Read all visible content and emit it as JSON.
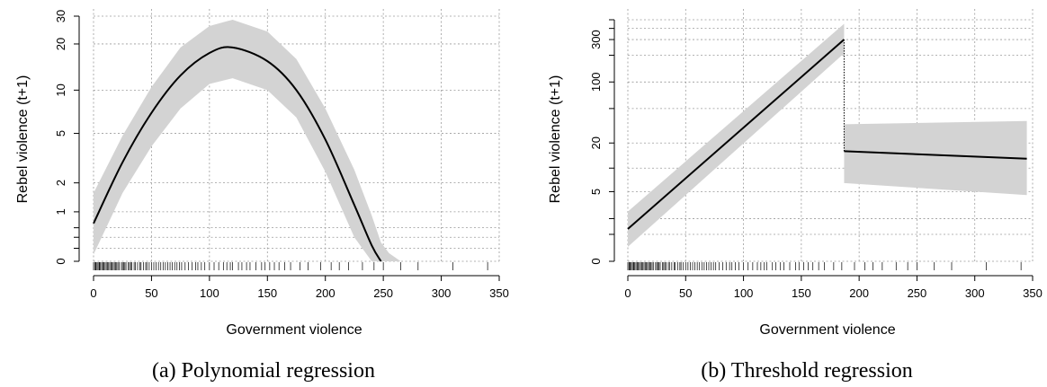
{
  "chart_data": [
    {
      "type": "line",
      "caption": "(a) Polynomial regression",
      "xlabel": "Government violence",
      "ylabel": "Rebel violence (t+1)",
      "xlim": [
        0,
        350
      ],
      "x_ticks": [
        0,
        50,
        100,
        150,
        200,
        250,
        300,
        350
      ],
      "y_scale": "log1p",
      "y_ticks": [
        0,
        1,
        2,
        5,
        10,
        20,
        30
      ],
      "y_minor_ticks": [
        0.2,
        0.4,
        0.6
      ],
      "grid": true,
      "series": [
        {
          "role": "fit",
          "x": [
            0,
            25,
            50,
            75,
            100,
            120,
            150,
            175,
            200,
            225,
            240,
            248
          ],
          "y": [
            0.7,
            3.0,
            7.0,
            12.5,
            17.5,
            19.0,
            15.5,
            10.0,
            4.5,
            1.2,
            0.25,
            0
          ],
          "lower": [
            0.1,
            1.6,
            4.0,
            7.5,
            11.0,
            12.0,
            10.0,
            6.5,
            2.5,
            0.4,
            0,
            0
          ],
          "upper": [
            1.6,
            4.8,
            10.5,
            19.0,
            26.0,
            28.5,
            24.0,
            16.0,
            7.5,
            2.6,
            0.9,
            0.3
          ]
        }
      ],
      "upper_band_end": [
        {
          "x": 255,
          "y": 0.12
        },
        {
          "x": 265,
          "y": 0
        }
      ],
      "rug_x": [
        0,
        1,
        2,
        2,
        3,
        3,
        4,
        5,
        5,
        6,
        7,
        8,
        8,
        9,
        10,
        11,
        12,
        13,
        14,
        15,
        16,
        17,
        18,
        19,
        20,
        21,
        22,
        24,
        25,
        26,
        27,
        28,
        30,
        31,
        32,
        33,
        35,
        36,
        38,
        40,
        41,
        43,
        45,
        46,
        48,
        50,
        52,
        54,
        56,
        58,
        60,
        62,
        64,
        66,
        68,
        70,
        72,
        74,
        76,
        79,
        82,
        85,
        88,
        90,
        93,
        96,
        100,
        104,
        108,
        112,
        115,
        118,
        120,
        125,
        128,
        132,
        135,
        140,
        145,
        148,
        152,
        156,
        160,
        165,
        170,
        178,
        185,
        196,
        205,
        212,
        220,
        232,
        242,
        250,
        265,
        280,
        310,
        340
      ]
    },
    {
      "type": "line",
      "caption": "(b) Threshold regression",
      "xlabel": "Government violence",
      "ylabel": "Rebel violence (t+1)",
      "xlim": [
        0,
        350
      ],
      "x_ticks": [
        0,
        50,
        100,
        150,
        200,
        250,
        300,
        350
      ],
      "y_scale": "log1p",
      "y_ticks": [
        0,
        5,
        20,
        100,
        300
      ],
      "y_minor_ticks": [
        1,
        2,
        10,
        50,
        200,
        400,
        500
      ],
      "grid": true,
      "threshold_x": 187,
      "series": [
        {
          "role": "below-threshold",
          "x": [
            0,
            187
          ],
          "y": [
            1.3,
            300
          ],
          "lower": [
            0.45,
            210
          ],
          "upper": [
            2.6,
            450
          ]
        },
        {
          "role": "above-threshold",
          "x": [
            187,
            345
          ],
          "y": [
            16,
            13
          ],
          "lower": [
            6.5,
            4.5
          ],
          "upper": [
            33,
            36
          ]
        }
      ],
      "rug_x": [
        0,
        1,
        1,
        2,
        2,
        3,
        3,
        4,
        5,
        5,
        6,
        7,
        8,
        8,
        9,
        10,
        11,
        12,
        13,
        14,
        15,
        16,
        17,
        18,
        19,
        20,
        21,
        22,
        24,
        25,
        26,
        27,
        28,
        30,
        31,
        32,
        33,
        35,
        36,
        38,
        40,
        41,
        43,
        45,
        46,
        48,
        50,
        52,
        54,
        56,
        58,
        60,
        62,
        64,
        66,
        68,
        70,
        72,
        74,
        76,
        79,
        82,
        85,
        88,
        90,
        93,
        96,
        100,
        104,
        108,
        112,
        115,
        118,
        120,
        125,
        128,
        132,
        135,
        140,
        145,
        148,
        152,
        156,
        160,
        165,
        170,
        178,
        185,
        196,
        205,
        212,
        220,
        232,
        242,
        250,
        265,
        280,
        310,
        340
      ]
    }
  ]
}
